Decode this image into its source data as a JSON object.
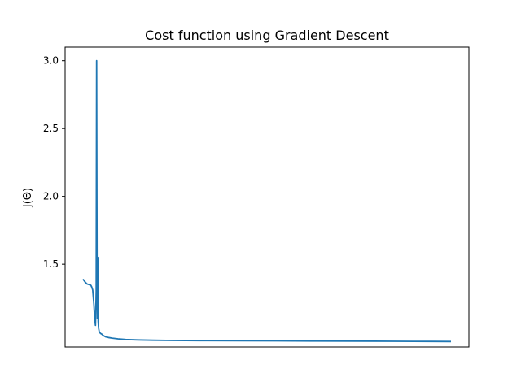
{
  "chart_data": {
    "type": "line",
    "title": "Cost function using Gradient Descent",
    "xlabel": "",
    "ylabel": "J(Θ)",
    "xlim": [
      0,
      1000
    ],
    "ylim": [
      0.89,
      3.1
    ],
    "yticks": [
      1.5,
      2.0,
      2.5,
      3.0
    ],
    "ytick_labels": [
      "1.5",
      "2.0",
      "2.5",
      "3.0"
    ],
    "xticks": [],
    "grid": false,
    "colors": {
      "line": "#1f77b4",
      "axes": "#000000",
      "background": "#ffffff"
    },
    "series": [
      {
        "x": [
          0,
          5,
          10,
          15,
          20,
          22,
          25,
          28,
          30,
          32,
          34,
          35,
          36,
          37,
          38,
          39,
          40,
          42,
          45,
          48,
          52,
          58,
          65,
          75,
          90,
          110,
          140,
          180,
          230,
          300,
          400,
          500,
          600,
          700,
          800,
          900,
          948
        ],
        "values": [
          1.39,
          1.37,
          1.355,
          1.35,
          1.345,
          1.335,
          1.31,
          1.2,
          1.1,
          1.05,
          1.3,
          3.0,
          1.5,
          1.1,
          1.55,
          1.08,
          1.03,
          1.0,
          0.99,
          0.985,
          0.975,
          0.965,
          0.96,
          0.955,
          0.95,
          0.945,
          0.942,
          0.94,
          0.938,
          0.937,
          0.936,
          0.935,
          0.934,
          0.933,
          0.932,
          0.931,
          0.93
        ]
      }
    ]
  }
}
